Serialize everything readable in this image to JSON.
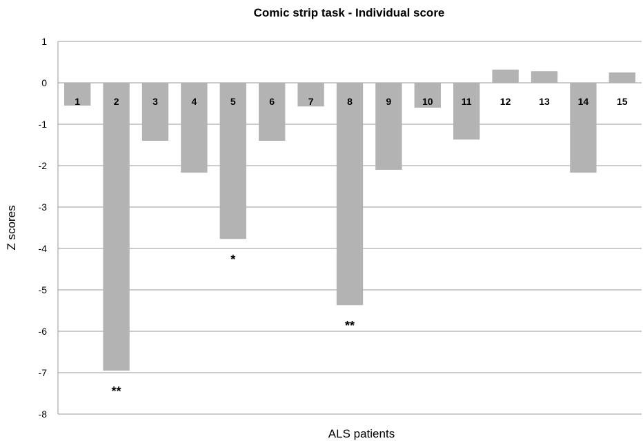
{
  "chart_data": {
    "type": "bar",
    "title": "Comic strip task - Individual score",
    "xlabel": "ALS patients",
    "ylabel": "Z scores",
    "ylim": [
      -8,
      1
    ],
    "yticks": [
      1,
      0,
      -1,
      -2,
      -3,
      -4,
      -5,
      -6,
      -7,
      -8
    ],
    "categories": [
      "1",
      "2",
      "3",
      "4",
      "5",
      "6",
      "7",
      "8",
      "9",
      "10",
      "11",
      "12",
      "13",
      "14",
      "15"
    ],
    "values": [
      -0.55,
      -6.95,
      -1.4,
      -2.17,
      -3.77,
      -1.4,
      -0.57,
      -5.37,
      -2.1,
      -0.6,
      -1.37,
      0.32,
      0.28,
      -2.17,
      0.25
    ],
    "annotations": [
      {
        "category": "2",
        "text": "**"
      },
      {
        "category": "5",
        "text": "*"
      },
      {
        "category": "8",
        "text": "**"
      }
    ],
    "bar_color": "#b3b3b3",
    "grid": true,
    "legend": "none"
  }
}
